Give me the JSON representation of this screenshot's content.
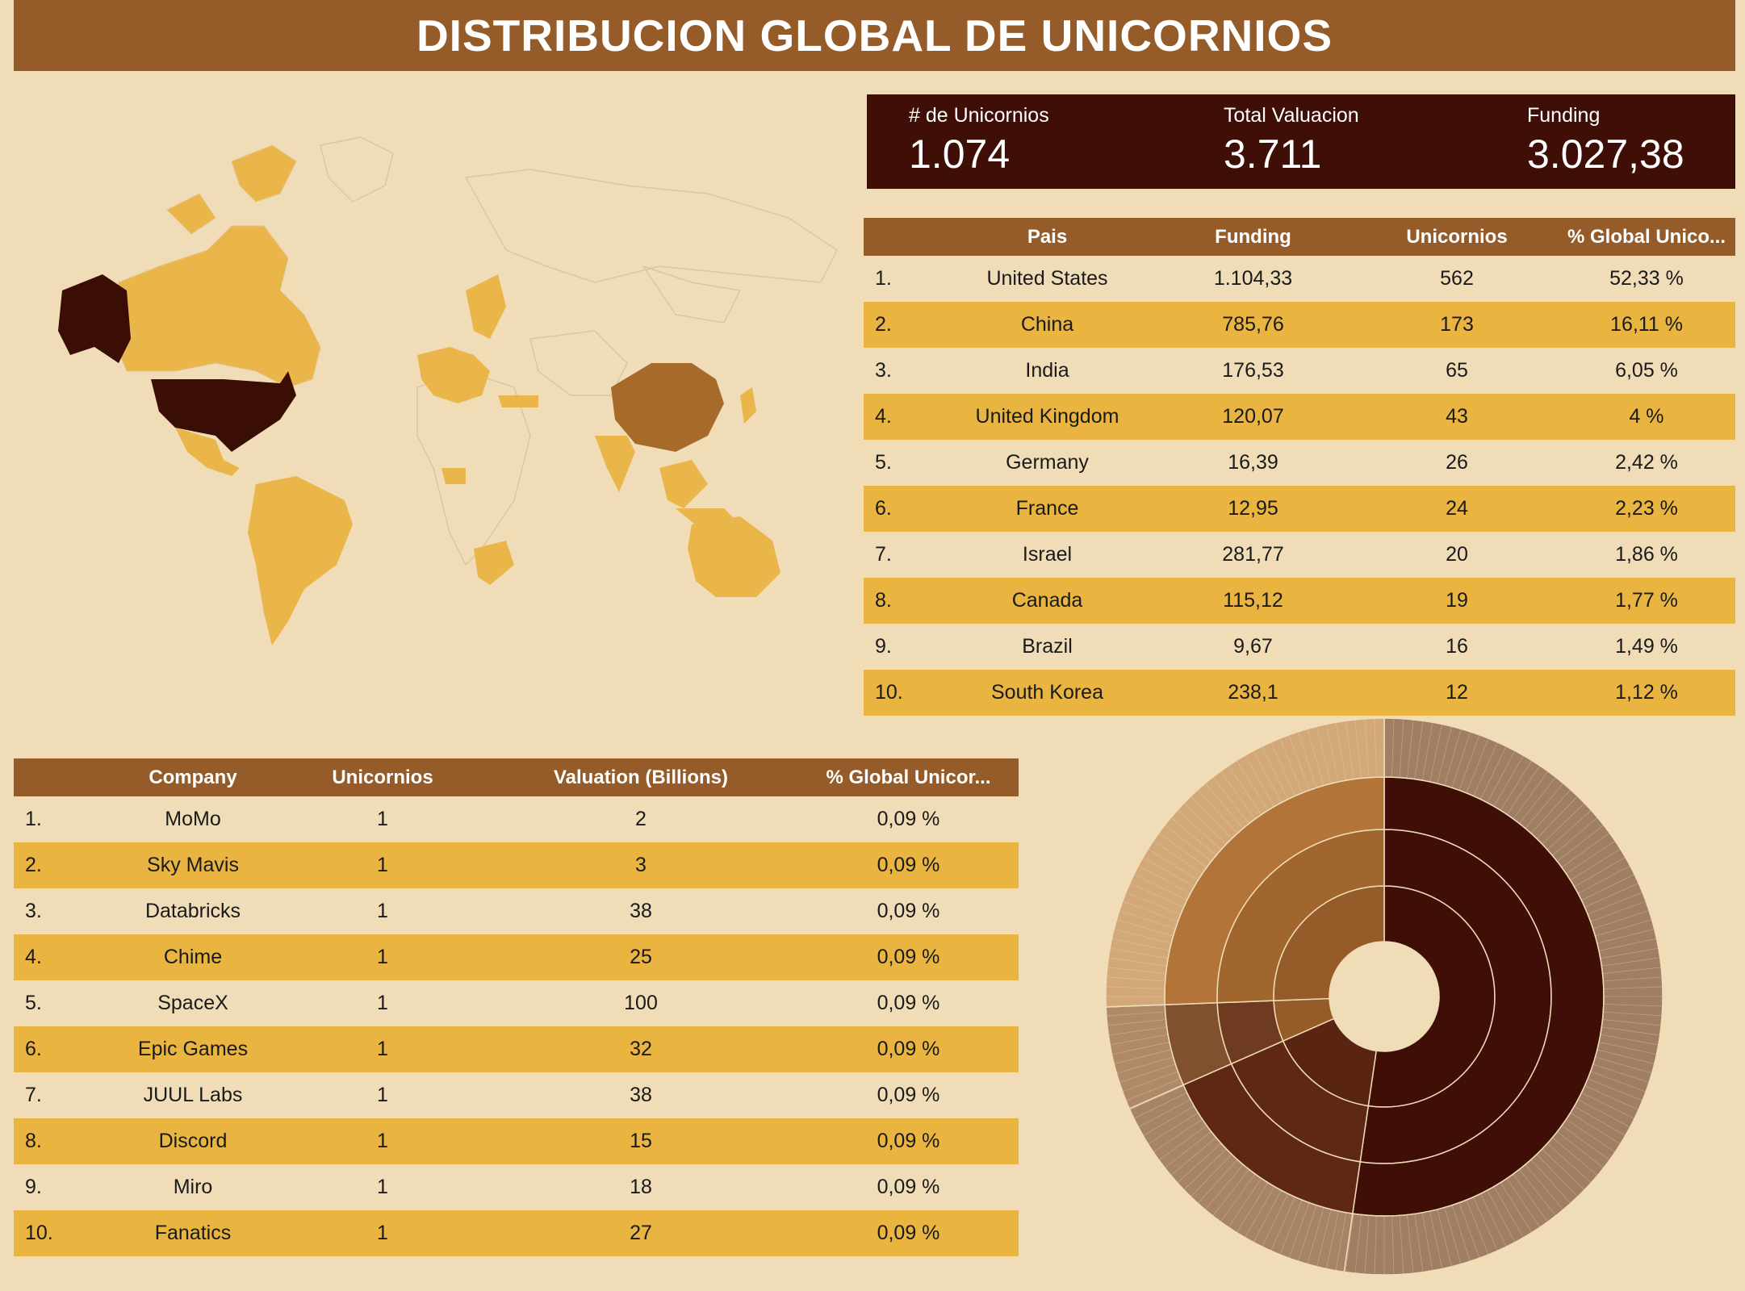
{
  "title": "DISTRIBUCION GLOBAL DE UNICORNIOS",
  "kpis": [
    {
      "label": "# de Unicornios",
      "value": "1.074"
    },
    {
      "label": "Total Valuacion",
      "value": "3.711"
    },
    {
      "label": "Funding",
      "value": "3.027,38"
    }
  ],
  "map": {
    "legend_min": "1",
    "legend_max": "562",
    "colors": {
      "low": "#eab549",
      "mid": "#a66a2b",
      "high": "#3a0d05"
    }
  },
  "country_table": {
    "headers": [
      "Pais",
      "Funding",
      "Unicornios",
      "% Global Unico..."
    ],
    "rows": [
      {
        "idx": "1.",
        "pais": "United States",
        "funding": "1.104,33",
        "unicornios": "562",
        "pct": "52,33 %"
      },
      {
        "idx": "2.",
        "pais": "China",
        "funding": "785,76",
        "unicornios": "173",
        "pct": "16,11 %"
      },
      {
        "idx": "3.",
        "pais": "India",
        "funding": "176,53",
        "unicornios": "65",
        "pct": "6,05 %"
      },
      {
        "idx": "4.",
        "pais": "United Kingdom",
        "funding": "120,07",
        "unicornios": "43",
        "pct": "4 %"
      },
      {
        "idx": "5.",
        "pais": "Germany",
        "funding": "16,39",
        "unicornios": "26",
        "pct": "2,42 %"
      },
      {
        "idx": "6.",
        "pais": "France",
        "funding": "12,95",
        "unicornios": "24",
        "pct": "2,23 %"
      },
      {
        "idx": "7.",
        "pais": "Israel",
        "funding": "281,77",
        "unicornios": "20",
        "pct": "1,86 %"
      },
      {
        "idx": "8.",
        "pais": "Canada",
        "funding": "115,12",
        "unicornios": "19",
        "pct": "1,77 %"
      },
      {
        "idx": "9.",
        "pais": "Brazil",
        "funding": "9,67",
        "unicornios": "16",
        "pct": "1,49 %"
      },
      {
        "idx": "10.",
        "pais": "South Korea",
        "funding": "238,1",
        "unicornios": "12",
        "pct": "1,12 %"
      }
    ]
  },
  "company_table": {
    "headers": [
      "Company",
      "Unicornios",
      "Valuation (Billions)",
      "% Global Unicor..."
    ],
    "rows": [
      {
        "idx": "1.",
        "company": "MoMo",
        "unicornios": "1",
        "valuation": "2",
        "pct": "0,09 %"
      },
      {
        "idx": "2.",
        "company": "Sky Mavis",
        "unicornios": "1",
        "valuation": "3",
        "pct": "0,09 %"
      },
      {
        "idx": "3.",
        "company": "Databricks",
        "unicornios": "1",
        "valuation": "38",
        "pct": "0,09 %"
      },
      {
        "idx": "4.",
        "company": "Chime",
        "unicornios": "1",
        "valuation": "25",
        "pct": "0,09 %"
      },
      {
        "idx": "5.",
        "company": "SpaceX",
        "unicornios": "1",
        "valuation": "100",
        "pct": "0,09 %"
      },
      {
        "idx": "6.",
        "company": "Epic Games",
        "unicornios": "1",
        "valuation": "32",
        "pct": "0,09 %"
      },
      {
        "idx": "7.",
        "company": "JUUL Labs",
        "unicornios": "1",
        "valuation": "38",
        "pct": "0,09 %"
      },
      {
        "idx": "8.",
        "company": "Discord",
        "unicornios": "1",
        "valuation": "15",
        "pct": "0,09 %"
      },
      {
        "idx": "9.",
        "company": "Miro",
        "unicornios": "1",
        "valuation": "18",
        "pct": "0,09 %"
      },
      {
        "idx": "10.",
        "company": "Fanatics",
        "unicornios": "1",
        "valuation": "27",
        "pct": "0,09 %"
      }
    ]
  },
  "sunburst": {
    "rings": [
      {
        "slices": [
          {
            "share": 0.523,
            "color": "#3f0f07"
          },
          {
            "share": 0.161,
            "color": "#5a2412"
          },
          {
            "share": 0.06,
            "color": "#955c2a"
          },
          {
            "share": 0.256,
            "color": "#955c2a"
          }
        ]
      },
      {
        "slices": [
          {
            "share": 0.523,
            "color": "#3f0f07"
          },
          {
            "share": 0.161,
            "color": "#5e2815"
          },
          {
            "share": 0.06,
            "color": "#6e3a20"
          },
          {
            "share": 0.256,
            "color": "#a0662e"
          }
        ]
      },
      {
        "slices": [
          {
            "share": 0.523,
            "color": "#3f0f07"
          },
          {
            "share": 0.161,
            "color": "#5e2815"
          },
          {
            "share": 0.06,
            "color": "#80502f"
          },
          {
            "share": 0.256,
            "color": "#b3743a"
          }
        ]
      },
      {
        "slices": [
          {
            "share": 0.523,
            "color": "#9f7e64"
          },
          {
            "share": 0.161,
            "color": "#a78466"
          },
          {
            "share": 0.06,
            "color": "#b08a68"
          },
          {
            "share": 0.256,
            "color": "#d2a879"
          }
        ]
      }
    ]
  }
}
